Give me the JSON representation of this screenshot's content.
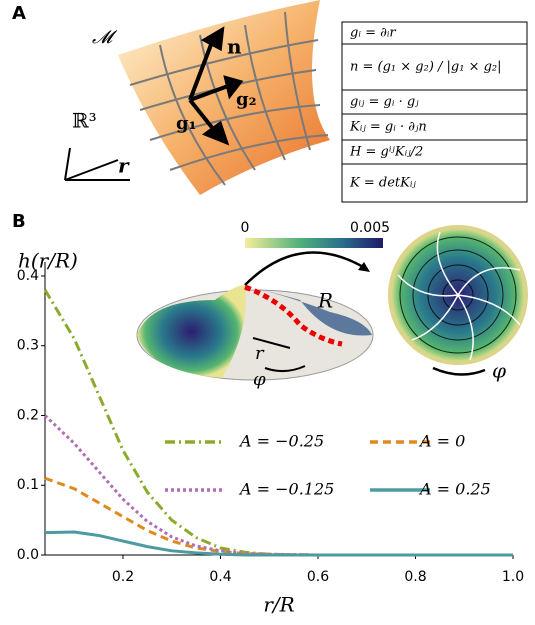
{
  "panel_labels": [
    "A",
    "B"
  ],
  "surface": {
    "manifold": "𝓜",
    "space": "ℝ³",
    "normal": "n",
    "g2": "g₂",
    "g1": "g₁",
    "position": "r"
  },
  "equations": [
    "gᵢ = ∂ᵢr",
    "n = (g₁ × g₂) / |g₁ × g₂|",
    "gᵢⱼ = gᵢ · gⱼ",
    "Kᵢⱼ = gᵢ · ∂ⱼn",
    "H = gⁱʲKᵢⱼ/2",
    "K = detKᵢⱼ"
  ],
  "inset": {
    "colorbar_ticks": [
      "0",
      "0.005"
    ],
    "radius": "R",
    "radial": "r",
    "angle": "φ",
    "angle_top": "φ"
  },
  "chart_data": {
    "type": "line",
    "xlabel": "r/R",
    "ylabel": "h(r/R)",
    "x": [
      0.04,
      0.1,
      0.15,
      0.2,
      0.25,
      0.3,
      0.35,
      0.4,
      0.45,
      0.5,
      0.6,
      0.8,
      1.0
    ],
    "series": [
      {
        "name": "A = −0.25",
        "color": "#8aab2b",
        "dash": "10 4 2 4",
        "values": [
          0.38,
          0.31,
          0.23,
          0.15,
          0.09,
          0.05,
          0.025,
          0.01,
          0.004,
          0.001,
          0,
          0,
          0
        ]
      },
      {
        "name": "A = 0",
        "color": "#e0891f",
        "dash": "8 5",
        "values": [
          0.11,
          0.095,
          0.075,
          0.055,
          0.035,
          0.02,
          0.01,
          0.005,
          0.002,
          0.001,
          0,
          0,
          0
        ]
      },
      {
        "name": "A = −0.125",
        "color": "#b06db4",
        "dash": "3 3",
        "values": [
          0.2,
          0.16,
          0.12,
          0.08,
          0.048,
          0.026,
          0.013,
          0.006,
          0.002,
          0.001,
          0,
          0,
          0
        ]
      },
      {
        "name": "A = 0.25",
        "color": "#4b9ba1",
        "dash": "",
        "values": [
          0.032,
          0.033,
          0.028,
          0.02,
          0.012,
          0.006,
          0.003,
          0.001,
          0,
          0,
          0,
          0,
          0
        ]
      }
    ],
    "xlim": [
      0.04,
      1.0
    ],
    "ylim": [
      0,
      0.42
    ],
    "xticks": [
      0.2,
      0.4,
      0.6,
      0.8,
      {
        "value": 1,
        "label": "1.0"
      }
    ],
    "yticks": [
      {
        "value": 0,
        "label": "0.0"
      },
      0.1,
      0.2,
      0.3,
      0.4
    ]
  }
}
